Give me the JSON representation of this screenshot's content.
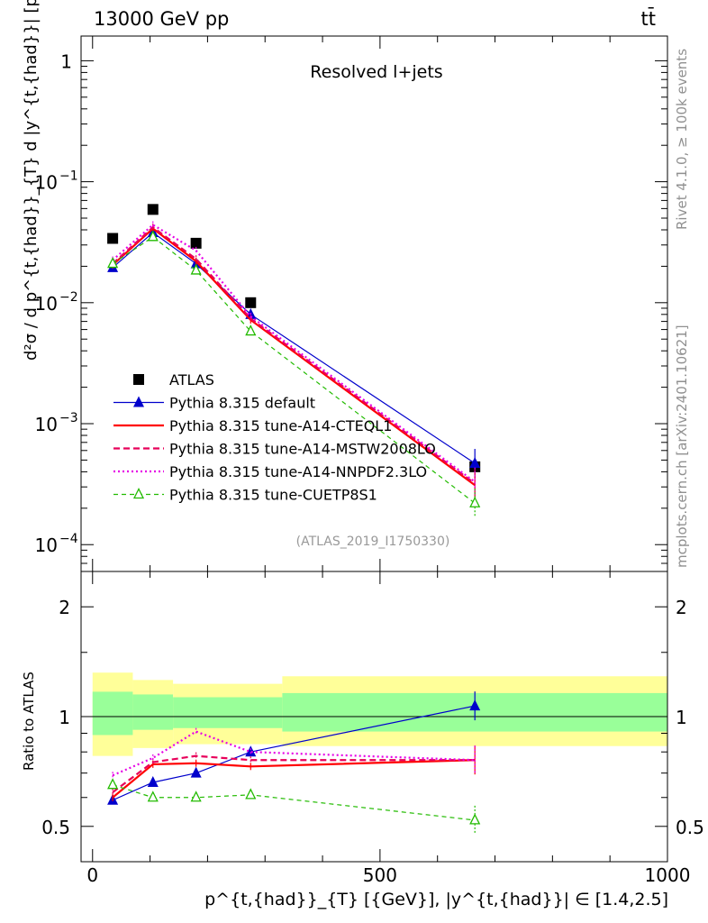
{
  "header": {
    "energy_label": "13000 GeV pp",
    "process_label": "tt̄"
  },
  "side_texts": {
    "rivet": "Rivet 4.1.0, ≥ 100k events",
    "mcplots": "mcplots.cern.ch [arXiv:2401.10621]"
  },
  "analysis_tag": "(ATLAS_2019_I1750330)",
  "panel_title": "Resolved l+jets",
  "colors": {
    "atlas": "#000000",
    "default": "#0000cc",
    "cteq": "#ff0000",
    "mstw": "#e8005a",
    "nnpdf": "#e600e6",
    "cuetp": "#22bb00",
    "band_yellow": "#ffff99",
    "band_green": "#99ff99"
  },
  "chart_data": [
    {
      "type": "scatter",
      "title": "Resolved l+jets",
      "yscale": "log",
      "ylabel": "d²σ / d p^{t,{had}}_{T} d |y^{t,{had}}| [pb/GeV]",
      "xlabel": "p^{t,{had}}_{T} [{GeV}], |y^{t,{had}}| ∈ [1.4,2.5]",
      "xlim": [
        -20,
        1000
      ],
      "ylim": [
        6e-05,
        1.6
      ],
      "y_ticks": [
        {
          "value": 1,
          "label": "1"
        },
        {
          "value": 0.1,
          "label": "10",
          "exp": "−1"
        },
        {
          "value": 0.01,
          "label": "10",
          "exp": "−2"
        },
        {
          "value": 0.001,
          "label": "10",
          "exp": "−3"
        },
        {
          "value": 0.0001,
          "label": "10",
          "exp": "−4"
        }
      ],
      "legend_position": "center-left",
      "x": [
        35,
        105,
        180,
        275,
        665
      ],
      "series": [
        {
          "name": "ATLAS",
          "key": "atlas",
          "values": [
            0.034,
            0.059,
            0.031,
            0.01,
            0.00044
          ]
        },
        {
          "name": "Pythia 8.315 default",
          "key": "default",
          "values": [
            0.0195,
            0.038,
            0.021,
            0.008,
            0.00047
          ]
        },
        {
          "name": "Pythia 8.315 tune-A14-CTEQL1",
          "key": "cteq",
          "values": [
            0.0205,
            0.041,
            0.022,
            0.0072,
            0.00031
          ]
        },
        {
          "name": "Pythia 8.315 tune-A14-MSTW2008LO",
          "key": "mstw",
          "values": [
            0.021,
            0.042,
            0.023,
            0.0074,
            0.00032
          ]
        },
        {
          "name": "Pythia 8.315 tune-A14-NNPDF2.3LO",
          "key": "nnpdf",
          "values": [
            0.0225,
            0.044,
            0.027,
            0.0077,
            0.00033
          ]
        },
        {
          "name": "Pythia 8.315 tune-CUETP8S1",
          "key": "cuetp",
          "values": [
            0.021,
            0.035,
            0.0185,
            0.0058,
            0.00022
          ]
        }
      ]
    },
    {
      "type": "line",
      "ylabel": "Ratio to ATLAS",
      "yscale": "log",
      "ylim": [
        0.4,
        2.5
      ],
      "xlim": [
        -20,
        1000
      ],
      "y_ticks_left": [
        {
          "value": 0.5,
          "label": "0.5"
        },
        {
          "value": 1,
          "label": "1"
        },
        {
          "value": 2,
          "label": "2"
        }
      ],
      "y_ticks_right": [
        {
          "value": 0.5,
          "label": "0.5"
        },
        {
          "value": 1,
          "label": "1"
        },
        {
          "value": 2,
          "label": "2"
        }
      ],
      "x_ticks": [
        {
          "value": 0,
          "label": "0"
        },
        {
          "value": 500,
          "label": "500"
        },
        {
          "value": 1000,
          "label": "1000"
        }
      ],
      "bands": [
        {
          "x_from": 0,
          "x_to": 70,
          "yellow": [
            0.78,
            1.32
          ],
          "green": [
            0.89,
            1.17
          ]
        },
        {
          "x_from": 70,
          "x_to": 140,
          "yellow": [
            0.82,
            1.26
          ],
          "green": [
            0.92,
            1.15
          ]
        },
        {
          "x_from": 140,
          "x_to": 330,
          "yellow": [
            0.84,
            1.23
          ],
          "green": [
            0.93,
            1.13
          ]
        },
        {
          "x_from": 330,
          "x_to": 1000,
          "yellow": [
            0.83,
            1.29
          ],
          "green": [
            0.91,
            1.16
          ]
        }
      ],
      "x": [
        35,
        105,
        180,
        275,
        665
      ],
      "series": [
        {
          "name": "Pythia 8.315 default",
          "key": "default",
          "values": [
            0.59,
            0.66,
            0.7,
            0.8,
            1.07
          ]
        },
        {
          "name": "Pythia 8.315 tune-A14-CTEQL1",
          "key": "cteq",
          "values": [
            0.6,
            0.74,
            0.745,
            0.73,
            0.76
          ]
        },
        {
          "name": "Pythia 8.315 tune-A14-MSTW2008LO",
          "key": "mstw",
          "values": [
            0.62,
            0.75,
            0.78,
            0.76,
            0.76
          ]
        },
        {
          "name": "Pythia 8.315 tune-A14-NNPDF2.3LO",
          "key": "nnpdf",
          "values": [
            0.69,
            0.77,
            0.91,
            0.8,
            0.76
          ]
        },
        {
          "name": "Pythia 8.315 tune-CUETP8S1",
          "key": "cuetp",
          "values": [
            0.65,
            0.6,
            0.6,
            0.61,
            0.52
          ]
        }
      ]
    }
  ]
}
